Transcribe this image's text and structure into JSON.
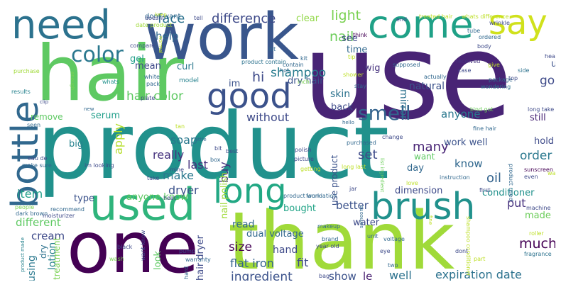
{
  "words": [
    {
      "text": "product",
      "color": "#21918c"
    },
    {
      "text": "use",
      "color": "#482475"
    },
    {
      "text": "hair",
      "color": "#5ec962"
    },
    {
      "text": "thank",
      "color": "#a0da39"
    },
    {
      "text": "work",
      "color": "#39568c"
    },
    {
      "text": "one",
      "color": "#440154"
    },
    {
      "text": "need",
      "color": "#2c728e"
    },
    {
      "text": "used",
      "color": "#2fb47c"
    },
    {
      "text": "bottle",
      "color": "#31688e"
    },
    {
      "text": "come",
      "color": "#1fa187"
    },
    {
      "text": "good",
      "color": "#3b528b"
    },
    {
      "text": "say",
      "color": "#d0e11c"
    },
    {
      "text": "long",
      "color": "#22a884"
    },
    {
      "text": "brush",
      "color": "#21918c"
    },
    {
      "text": "color",
      "color": "#2a788e"
    },
    {
      "text": "smell",
      "color": "#33638d"
    },
    {
      "text": "difference",
      "color": "#3e4a89"
    },
    {
      "text": "face",
      "color": "#2c728e"
    },
    {
      "text": "clear",
      "color": "#8fd744"
    },
    {
      "text": "light",
      "color": "#7ad151"
    },
    {
      "text": "nail",
      "color": "#6ccd5a"
    },
    {
      "text": "shampoo",
      "color": "#287c8e"
    },
    {
      "text": "hi",
      "color": "#3e4a89"
    },
    {
      "text": "help",
      "color": "#31688e"
    },
    {
      "text": "dry hair",
      "color": "#3b528b"
    },
    {
      "text": "skin",
      "color": "#2c728e"
    },
    {
      "text": "hair color",
      "color": "#5ec962"
    },
    {
      "text": "serum",
      "color": "#1f9e89"
    },
    {
      "text": "without",
      "color": "#3e4a89"
    },
    {
      "text": "apply",
      "color": "#b5de2b"
    },
    {
      "text": "soap",
      "color": "#2a788e"
    },
    {
      "text": "really",
      "color": "#46327e"
    },
    {
      "text": "last",
      "color": "#46327e"
    },
    {
      "text": "make",
      "color": "#2a788e"
    },
    {
      "text": "dryer",
      "color": "#3b528b"
    },
    {
      "text": "buy",
      "color": "#46327e"
    },
    {
      "text": "use product",
      "color": "#3b528b"
    },
    {
      "text": "set",
      "color": "#3e4a89"
    },
    {
      "text": "many",
      "color": "#482475"
    },
    {
      "text": "know",
      "color": "#31688e"
    },
    {
      "text": "anyone",
      "color": "#2a788e"
    },
    {
      "text": "oil",
      "color": "#33638d"
    },
    {
      "text": "order",
      "color": "#2a788e"
    },
    {
      "text": "hold",
      "color": "#3e4a89"
    },
    {
      "text": "work well",
      "color": "#3b528b"
    },
    {
      "text": "still",
      "color": "#482475"
    },
    {
      "text": "much",
      "color": "#440154"
    },
    {
      "text": "made",
      "color": "#6ccd5a"
    },
    {
      "text": "put",
      "color": "#46327e"
    },
    {
      "text": "better",
      "color": "#3b528b"
    },
    {
      "text": "item",
      "color": "#1f9e89"
    },
    {
      "text": "different",
      "color": "#5ec962"
    },
    {
      "text": "cream",
      "color": "#3e4a89"
    },
    {
      "text": "lotion",
      "color": "#26828e"
    },
    {
      "text": "using",
      "color": "#2a788e"
    },
    {
      "text": "size",
      "color": "#440154"
    },
    {
      "text": "read",
      "color": "#31688e"
    },
    {
      "text": "flat iron",
      "color": "#33638d"
    },
    {
      "text": "fit",
      "color": "#3e4a89"
    },
    {
      "text": "ingredient",
      "color": "#3b528b"
    },
    {
      "text": "show",
      "color": "#3b528b"
    },
    {
      "text": "le",
      "color": "#481f70"
    },
    {
      "text": "well",
      "color": "#2c728e"
    },
    {
      "text": "expiration date",
      "color": "#2c728e"
    },
    {
      "text": "hand",
      "color": "#3e4a89"
    },
    {
      "text": "dual voltage",
      "color": "#31688e"
    },
    {
      "text": "hair dryer",
      "color": "#3e4a89"
    },
    {
      "text": "natural",
      "color": "#3b528b"
    },
    {
      "text": "mirror",
      "color": "#2c728e"
    },
    {
      "text": "go",
      "color": "#3e4a89"
    },
    {
      "text": "u",
      "color": "#3b528b"
    },
    {
      "text": "dimension",
      "color": "#3e4a89"
    },
    {
      "text": "conditioner",
      "color": "#21918c"
    },
    {
      "text": "bought",
      "color": "#20a386"
    },
    {
      "text": "anyone know",
      "color": "#5ec962"
    },
    {
      "text": "type",
      "color": "#3b528b"
    },
    {
      "text": "curl",
      "color": "#2a788e"
    },
    {
      "text": "im",
      "color": "#3b528b"
    },
    {
      "text": "wig",
      "color": "#46327e"
    },
    {
      "text": "time",
      "color": "#31688e"
    },
    {
      "text": "see",
      "color": "#3e4a89"
    },
    {
      "text": "gel",
      "color": "#1f9e89"
    },
    {
      "text": "mean",
      "color": "#3e4a89"
    },
    {
      "text": "water",
      "color": "#3e4a89"
    },
    {
      "text": "nail polish",
      "color": "#a0da39"
    },
    {
      "text": "treatment",
      "color": "#7ad151"
    },
    {
      "text": "look",
      "color": "#5ec962"
    },
    {
      "text": "remove",
      "color": "#5ec962"
    },
    {
      "text": "big",
      "color": "#26828e"
    },
    {
      "text": "back",
      "color": "#3e4a89"
    },
    {
      "text": "dry",
      "color": "#2c728e"
    },
    {
      "text": "want",
      "color": "#5ec962"
    },
    {
      "text": "day",
      "color": "#31688e"
    },
    {
      "text": "dont want",
      "color": "#31688e"
    },
    {
      "text": "tell",
      "color": "#3e4a89"
    },
    {
      "text": "doesnt",
      "color": "#3e4a89"
    },
    {
      "text": "keep",
      "color": "#bddf26"
    },
    {
      "text": "date product",
      "color": "#a0da39"
    },
    {
      "text": "compare",
      "color": "#3e4a89"
    },
    {
      "text": "normal",
      "color": "#bddf26"
    },
    {
      "text": "contain",
      "color": "#31688e"
    },
    {
      "text": "product contain",
      "color": "#2c728e"
    },
    {
      "text": "kit",
      "color": "#31688e"
    },
    {
      "text": "hot",
      "color": "#31688e"
    },
    {
      "text": "lot",
      "color": "#31688e"
    },
    {
      "text": "think",
      "color": "#440154"
    },
    {
      "text": "tip",
      "color": "#bddf26"
    },
    {
      "text": "purchase",
      "color": "#a0da39"
    },
    {
      "text": "enough",
      "color": "#7ad151"
    },
    {
      "text": "whats",
      "color": "#21918c"
    },
    {
      "text": "white",
      "color": "#31688e"
    },
    {
      "text": "pack",
      "color": "#31688e"
    },
    {
      "text": "model",
      "color": "#26828e"
    },
    {
      "text": "inch",
      "color": "#7ad151"
    },
    {
      "text": "shower",
      "color": "#bddf26"
    },
    {
      "text": "stay",
      "color": "#31688e"
    },
    {
      "text": "supposed",
      "color": "#31688e"
    },
    {
      "text": "actually",
      "color": "#31688e"
    },
    {
      "text": "received",
      "color": "#46327e"
    },
    {
      "text": "case",
      "color": "#3e4a89"
    },
    {
      "text": "package",
      "color": "#31688e"
    },
    {
      "text": "wondering",
      "color": "#2c728e"
    },
    {
      "text": "top",
      "color": "#3e4a89"
    },
    {
      "text": "side",
      "color": "#2c728e"
    },
    {
      "text": "head",
      "color": "#3e4a89"
    },
    {
      "text": "give",
      "color": "#bddf26"
    },
    {
      "text": "body",
      "color": "#3e4a89"
    },
    {
      "text": "ordered",
      "color": "#31688e"
    },
    {
      "text": "tube",
      "color": "#31688e"
    },
    {
      "text": "wrinkle",
      "color": "#3e4a89"
    },
    {
      "text": "treated hair",
      "color": "#bddf26"
    },
    {
      "text": "whats difference",
      "color": "#bddf26"
    },
    {
      "text": "end",
      "color": "#3e4a89"
    },
    {
      "text": "results",
      "color": "#26828e"
    },
    {
      "text": "clip",
      "color": "#3e4a89"
    },
    {
      "text": "new",
      "color": "#31688e"
    },
    {
      "text": "plate",
      "color": "#3e4a89"
    },
    {
      "text": "hello",
      "color": "#31688e"
    },
    {
      "text": "fine hair",
      "color": "#31688e"
    },
    {
      "text": "kind got",
      "color": "#6ccd5a"
    },
    {
      "text": "long take",
      "color": "#3e4a89"
    },
    {
      "text": "tan",
      "color": "#bddf26"
    },
    {
      "text": "seen",
      "color": "#31688e"
    },
    {
      "text": "little",
      "color": "#31688e"
    },
    {
      "text": "bit",
      "color": "#3e4a89"
    },
    {
      "text": "best",
      "color": "#3e4a89"
    },
    {
      "text": "box",
      "color": "#31688e"
    },
    {
      "text": "polish",
      "color": "#3e4a89"
    },
    {
      "text": "picture",
      "color": "#3e4a89"
    },
    {
      "text": "purchased",
      "color": "#31688e"
    },
    {
      "text": "change",
      "color": "#3e4a89"
    },
    {
      "text": "eau de",
      "color": "#3e4a89"
    },
    {
      "text": "make sure",
      "color": "#31688e"
    },
    {
      "text": "im looking",
      "color": "#3e4a89"
    },
    {
      "text": "mine",
      "color": "#3e4a89"
    },
    {
      "text": "take",
      "color": "#3e4a89"
    },
    {
      "text": "getting",
      "color": "#bddf26"
    },
    {
      "text": "long last",
      "color": "#bddf26"
    },
    {
      "text": "list ingredient",
      "color": "#6ccd5a"
    },
    {
      "text": "instruction",
      "color": "#31688e"
    },
    {
      "text": "sunscreen",
      "color": "#440154"
    },
    {
      "text": "even",
      "color": "#3e4a89"
    },
    {
      "text": "way",
      "color": "#bddf26"
    },
    {
      "text": "product used",
      "color": "#31688e"
    },
    {
      "text": "first",
      "color": "#3e4a89"
    },
    {
      "text": "love",
      "color": "#bddf26"
    },
    {
      "text": "jar",
      "color": "#3e4a89"
    },
    {
      "text": "foundation",
      "color": "#31688e"
    },
    {
      "text": "heat",
      "color": "#3e4a89"
    },
    {
      "text": "product work",
      "color": "#31688e"
    },
    {
      "text": "people",
      "color": "#7ad151"
    },
    {
      "text": "recommend",
      "color": "#31688e"
    },
    {
      "text": "moisturizer",
      "color": "#3e4a89"
    },
    {
      "text": "dark brown",
      "color": "#31688e"
    },
    {
      "text": "machine",
      "color": "#3e4a89"
    },
    {
      "text": "makeup",
      "color": "#31688e"
    },
    {
      "text": "someone",
      "color": "#31688e"
    },
    {
      "text": "brand",
      "color": "#31688e"
    },
    {
      "text": "year old",
      "color": "#3e4a89"
    },
    {
      "text": "unit",
      "color": "#31688e"
    },
    {
      "text": "voltage",
      "color": "#31688e"
    },
    {
      "text": "shampoo conditioner",
      "color": "#bddf26"
    },
    {
      "text": "roller",
      "color": "#bddf26"
    },
    {
      "text": "fragrance",
      "color": "#2c728e"
    },
    {
      "text": "part",
      "color": "#bddf26"
    },
    {
      "text": "dont",
      "color": "#3e4a89"
    },
    {
      "text": "eye",
      "color": "#3e4a89"
    },
    {
      "text": "pump",
      "color": "#3e4a89"
    },
    {
      "text": "black",
      "color": "#3e4a89"
    },
    {
      "text": "want know",
      "color": "#3e4a89"
    },
    {
      "text": "wash",
      "color": "#7ad151"
    },
    {
      "text": "warranty",
      "color": "#31688e"
    },
    {
      "text": "product made",
      "color": "#26828e"
    },
    {
      "text": "hard",
      "color": "#31688e"
    },
    {
      "text": "bag",
      "color": "#3e4a89"
    },
    {
      "text": "two",
      "color": "#31688e"
    },
    {
      "text": "fine",
      "color": "#bddf26"
    }
  ]
}
